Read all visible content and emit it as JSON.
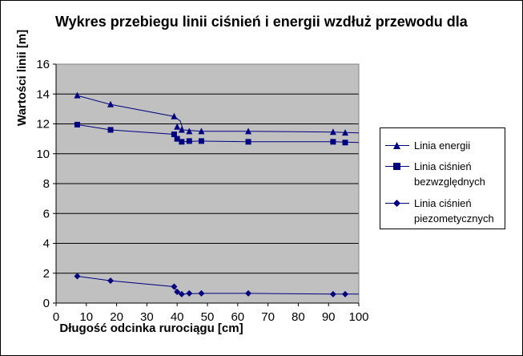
{
  "chart_data": {
    "type": "line",
    "title": "Wykres przebiegu linii ciśnień i energii wzdłuż przewodu dla",
    "xlabel": "Długość odcinka rurociągu [cm]",
    "ylabel": "Wartości linii [m]",
    "xlim": [
      0,
      100
    ],
    "ylim": [
      0,
      16
    ],
    "xticks": [
      0,
      10,
      20,
      30,
      40,
      50,
      60,
      70,
      80,
      90,
      100
    ],
    "yticks": [
      0,
      2,
      4,
      6,
      8,
      10,
      12,
      14,
      16
    ],
    "grid": true,
    "legend_position": "right",
    "series": [
      {
        "name": "Linia energii",
        "marker": "triangle",
        "color": "#000080",
        "points": [
          [
            7,
            13.9
          ],
          [
            18,
            13.3
          ],
          [
            39,
            12.5
          ],
          [
            40,
            11.8
          ],
          [
            41.5,
            11.6
          ],
          [
            44,
            11.5
          ],
          [
            48,
            11.5
          ],
          [
            63.5,
            11.5
          ],
          [
            91.5,
            11.45
          ],
          [
            95.5,
            11.4
          ]
        ],
        "line": [
          [
            7,
            13.9
          ],
          [
            18,
            13.3
          ],
          [
            39,
            12.5
          ],
          [
            41,
            12.2
          ],
          [
            42,
            11.6
          ],
          [
            48,
            11.5
          ],
          [
            63.5,
            11.5
          ],
          [
            91.5,
            11.45
          ],
          [
            100,
            11.4
          ]
        ]
      },
      {
        "name": "Linia ciśnień bezwzględnych",
        "legend_lines": [
          "Linia ciśnień",
          "bezwzględnych"
        ],
        "marker": "square",
        "color": "#000080",
        "points": [
          [
            7,
            11.95
          ],
          [
            18,
            11.6
          ],
          [
            39,
            11.3
          ],
          [
            40,
            11.0
          ],
          [
            41.5,
            10.8
          ],
          [
            44,
            10.85
          ],
          [
            48,
            10.85
          ],
          [
            63.5,
            10.8
          ],
          [
            91.5,
            10.8
          ],
          [
            95.5,
            10.75
          ]
        ],
        "line": [
          [
            7,
            11.95
          ],
          [
            18,
            11.6
          ],
          [
            39,
            11.3
          ],
          [
            40,
            11.0
          ],
          [
            41.5,
            10.8
          ],
          [
            48,
            10.85
          ],
          [
            63.5,
            10.8
          ],
          [
            91.5,
            10.8
          ],
          [
            100,
            10.75
          ]
        ]
      },
      {
        "name": "Linia ciśnień piezometycznych",
        "legend_lines": [
          "Linia ciśnień",
          "piezometycznych"
        ],
        "marker": "diamond",
        "color": "#000080",
        "points": [
          [
            7,
            1.8
          ],
          [
            18,
            1.5
          ],
          [
            39,
            1.1
          ],
          [
            40,
            0.75
          ],
          [
            41.5,
            0.6
          ],
          [
            44,
            0.65
          ],
          [
            48,
            0.65
          ],
          [
            63.5,
            0.65
          ],
          [
            91.5,
            0.6
          ],
          [
            95.5,
            0.6
          ]
        ],
        "line": [
          [
            7,
            1.8
          ],
          [
            18,
            1.5
          ],
          [
            39,
            1.1
          ],
          [
            40,
            0.75
          ],
          [
            41.5,
            0.6
          ],
          [
            48,
            0.65
          ],
          [
            63.5,
            0.65
          ],
          [
            91.5,
            0.6
          ],
          [
            100,
            0.6
          ]
        ]
      }
    ]
  }
}
